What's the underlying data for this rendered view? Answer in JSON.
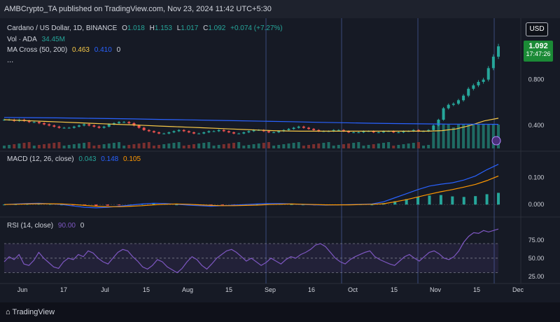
{
  "header": {
    "publisher": "AMBCrypto_TA published on TradingView.com, Nov 23, 2024 11:42 UTC+5:30"
  },
  "main_pane": {
    "symbol": "Cardano / US Dollar, 1D, BINANCE",
    "open_label": "O",
    "open": "1.018",
    "high_label": "H",
    "high": "1.153",
    "low_label": "L",
    "low": "1.017",
    "close_label": "C",
    "close": "1.092",
    "change": "+0.074 (+7.27%)",
    "volume_label": "Vol · ADA",
    "volume": "34.45M",
    "ma_label": "MA Cross (50, 200)",
    "ma_fast": "0.463",
    "ma_slow": "0.410",
    "ma_extra": "0",
    "more": "...",
    "currency_button": "USD",
    "last_price": "1.092",
    "countdown": "17:47:26"
  },
  "macd_pane": {
    "label": "MACD (12, 26, close)",
    "hist": "0.043",
    "macd": "0.148",
    "signal": "0.105"
  },
  "rsi_pane": {
    "label": "RSI (14, close)",
    "value": "90.00",
    "extra": "0"
  },
  "footer": {
    "brand": "TradingView"
  },
  "colors": {
    "background": "#161a25",
    "up": "#26a69a",
    "down": "#ef5350",
    "ma_fast": "#f7c948",
    "ma_slow": "#2962ff",
    "macd_line": "#2962ff",
    "signal_line": "#ff9800",
    "rsi_line": "#7e57c2",
    "last_price": "#1b8a36"
  },
  "chart_data": [
    {
      "type": "line",
      "title": "Cardano / US Dollar, 1D, BINANCE",
      "x_ticks": [
        "Jun",
        "17",
        "Jul",
        "15",
        "Aug",
        "15",
        "Sep",
        "16",
        "Oct",
        "15",
        "Nov",
        "15",
        "Dec"
      ],
      "y_ticks": [
        0.4,
        0.8
      ],
      "ylim": [
        0.2,
        1.25
      ],
      "series": [
        {
          "name": "Close",
          "values": [
            0.45,
            0.45,
            0.44,
            0.45,
            0.44,
            0.43,
            0.43,
            0.42,
            0.41,
            0.4,
            0.39,
            0.38,
            0.38,
            0.38,
            0.39,
            0.4,
            0.41,
            0.4,
            0.39,
            0.38,
            0.39,
            0.41,
            0.42,
            0.43,
            0.43,
            0.42,
            0.4,
            0.38,
            0.36,
            0.35,
            0.34,
            0.33,
            0.33,
            0.34,
            0.35,
            0.36,
            0.35,
            0.34,
            0.33,
            0.33,
            0.34,
            0.35,
            0.35,
            0.36,
            0.35,
            0.34,
            0.33,
            0.33,
            0.34,
            0.35,
            0.36,
            0.36,
            0.35,
            0.34,
            0.34,
            0.35,
            0.36,
            0.37,
            0.38,
            0.39,
            0.38,
            0.37,
            0.36,
            0.35,
            0.35,
            0.35,
            0.36,
            0.36,
            0.35,
            0.34,
            0.34,
            0.34,
            0.35,
            0.35,
            0.34,
            0.34,
            0.35,
            0.35,
            0.34,
            0.34,
            0.35,
            0.35,
            0.36,
            0.35,
            0.35,
            0.36,
            0.4,
            0.45,
            0.55,
            0.58,
            0.59,
            0.62,
            0.66,
            0.72,
            0.75,
            0.78,
            0.8,
            0.9,
            1.0,
            1.09
          ]
        },
        {
          "name": "MA 50",
          "values": [
            0.45,
            0.445,
            0.44,
            0.435,
            0.43,
            0.425,
            0.42,
            0.415,
            0.41,
            0.405,
            0.4,
            0.395,
            0.39,
            0.385,
            0.38,
            0.375,
            0.37,
            0.365,
            0.36,
            0.355,
            0.352,
            0.35,
            0.35,
            0.35,
            0.35,
            0.35,
            0.35,
            0.35,
            0.35,
            0.35,
            0.35,
            0.355,
            0.37,
            0.4,
            0.44,
            0.463
          ]
        },
        {
          "name": "MA 200",
          "values": [
            0.47,
            0.468,
            0.466,
            0.463,
            0.46,
            0.457,
            0.453,
            0.449,
            0.445,
            0.441,
            0.437,
            0.433,
            0.428,
            0.424,
            0.42,
            0.417,
            0.414,
            0.412,
            0.411,
            0.41
          ]
        }
      ]
    },
    {
      "type": "bar",
      "title": "MACD (12, 26, close)",
      "y_ticks": [
        0.0,
        0.1
      ],
      "ylim": [
        -0.02,
        0.16
      ],
      "series": [
        {
          "name": "Histogram",
          "values": [
            0.0,
            0.001,
            0.002,
            0.003,
            0.002,
            0.0,
            -0.002,
            -0.004,
            -0.005,
            -0.004,
            -0.002,
            0.0,
            0.002,
            0.003,
            0.002,
            0.0,
            -0.001,
            -0.002,
            -0.003,
            -0.002,
            -0.001,
            0.0,
            0.001,
            0.002,
            0.002,
            0.001,
            0.0,
            -0.001,
            -0.001,
            0.0,
            0.001,
            0.001,
            0.0,
            0.005,
            0.012,
            0.02,
            0.028,
            0.033,
            0.035,
            0.03,
            0.028,
            0.031,
            0.038,
            0.043
          ]
        },
        {
          "name": "MACD",
          "values": [
            0.0,
            0.002,
            0.004,
            0.005,
            0.003,
            0.0,
            -0.005,
            -0.01,
            -0.012,
            -0.01,
            -0.006,
            -0.002,
            0.002,
            0.005,
            0.004,
            0.001,
            -0.002,
            -0.004,
            -0.006,
            -0.004,
            -0.002,
            0.0,
            0.002,
            0.004,
            0.004,
            0.002,
            0.0,
            -0.001,
            -0.002,
            -0.001,
            0.0,
            0.001,
            0.002,
            0.01,
            0.025,
            0.04,
            0.055,
            0.068,
            0.075,
            0.08,
            0.09,
            0.105,
            0.128,
            0.148
          ]
        },
        {
          "name": "Signal",
          "values": [
            0.0,
            0.001,
            0.002,
            0.003,
            0.003,
            0.002,
            0.0,
            -0.003,
            -0.006,
            -0.008,
            -0.008,
            -0.006,
            -0.004,
            -0.001,
            0.001,
            0.002,
            0.001,
            -0.001,
            -0.003,
            -0.004,
            -0.004,
            -0.003,
            -0.002,
            0.0,
            0.001,
            0.002,
            0.001,
            0.0,
            -0.001,
            -0.001,
            -0.001,
            0.0,
            0.001,
            0.003,
            0.01,
            0.018,
            0.028,
            0.038,
            0.047,
            0.055,
            0.064,
            0.074,
            0.088,
            0.105
          ]
        }
      ]
    },
    {
      "type": "line",
      "title": "RSI (14, close)",
      "y_ticks": [
        25,
        50,
        75
      ],
      "ylim": [
        20,
        95
      ],
      "series": [
        {
          "name": "RSI",
          "values": [
            45,
            52,
            48,
            55,
            42,
            40,
            47,
            58,
            50,
            44,
            38,
            36,
            45,
            50,
            48,
            55,
            52,
            60,
            57,
            50,
            45,
            42,
            50,
            58,
            62,
            60,
            52,
            46,
            38,
            35,
            40,
            48,
            45,
            38,
            34,
            30,
            36,
            45,
            52,
            48,
            40,
            35,
            42,
            50,
            55,
            60,
            62,
            58,
            52,
            46,
            50,
            45,
            40,
            44,
            50,
            46,
            42,
            48,
            52,
            50,
            55,
            58,
            62,
            68,
            70,
            66,
            58,
            50,
            45,
            42,
            48,
            52,
            55,
            58,
            60,
            52,
            48,
            45,
            42,
            40,
            46,
            52,
            55,
            50,
            46,
            52,
            58,
            60,
            56,
            50,
            48,
            52,
            60,
            72,
            80,
            85,
            84,
            88,
            86,
            88,
            90
          ]
        }
      ]
    }
  ]
}
